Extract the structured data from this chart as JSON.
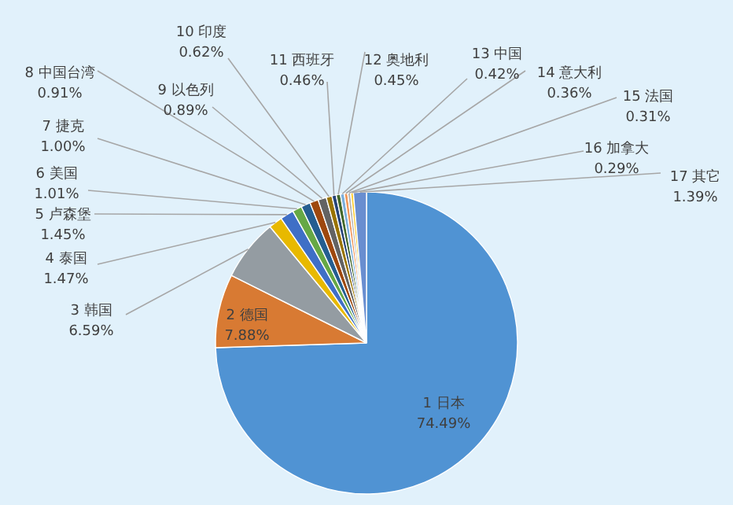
{
  "chart_data": {
    "type": "pie",
    "categories": [
      "1 日本",
      "2 德国",
      "3 韩国",
      "4 泰国",
      "5 卢森堡",
      "6 美国",
      "7 捷克",
      "8 中国台湾",
      "9 以色列",
      "10 印度",
      "11 西班牙",
      "12 奥地利",
      "13 中国",
      "14 意大利",
      "15 法国",
      "16 加拿大",
      "17 其它"
    ],
    "values": [
      74.49,
      7.88,
      6.59,
      1.47,
      1.45,
      1.01,
      1.0,
      0.91,
      0.89,
      0.62,
      0.46,
      0.45,
      0.42,
      0.36,
      0.31,
      0.29,
      1.39
    ],
    "value_labels": [
      "74.49%",
      "7.88%",
      "6.59%",
      "1.47%",
      "1.45%",
      "1.01%",
      "1.00%",
      "0.91%",
      "0.89%",
      "0.62%",
      "0.46%",
      "0.45%",
      "0.42%",
      "0.36%",
      "0.31%",
      "0.29%",
      "1.39%"
    ],
    "colors": [
      "#5093d3",
      "#d87a33",
      "#949ca2",
      "#e8b900",
      "#3f6fc6",
      "#66a845",
      "#255e91",
      "#9e480e",
      "#636363",
      "#997300",
      "#264478",
      "#43682b",
      "#7cafdd",
      "#f1975a",
      "#b7b7b7",
      "#ffcd33",
      "#698ed0"
    ]
  }
}
